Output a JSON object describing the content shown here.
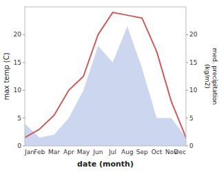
{
  "chart_data": {
    "type": "line",
    "xlabel": "date (month)",
    "ylabel": "max temp (C)",
    "y2label": "med. precipitation\n(kg/m2)",
    "categories": [
      "Jan",
      "Feb",
      "Mar",
      "Apr",
      "May",
      "Jun",
      "Jul",
      "Aug",
      "Sep",
      "Oct",
      "Nov",
      "Dec"
    ],
    "series": [
      {
        "type": "line",
        "color": "#cd5c5c",
        "values": [
          1.5,
          3.0,
          5.5,
          10.0,
          12.5,
          20.0,
          24.0,
          23.5,
          23.0,
          17.0,
          8.0,
          1.5
        ]
      },
      {
        "type": "area",
        "axis": "y2",
        "color": "#b8c4e8",
        "values": [
          4.0,
          1.5,
          2.0,
          5.0,
          10.0,
          18.0,
          15.0,
          21.5,
          14.0,
          5.0,
          5.0,
          1.5
        ]
      }
    ],
    "ylim": [
      0,
      25
    ],
    "yticks": [
      0,
      5,
      10,
      15,
      20
    ],
    "y2lim": [
      0,
      25
    ],
    "y2ticks": [
      0,
      5,
      10,
      15,
      20
    ],
    "grid": false
  }
}
